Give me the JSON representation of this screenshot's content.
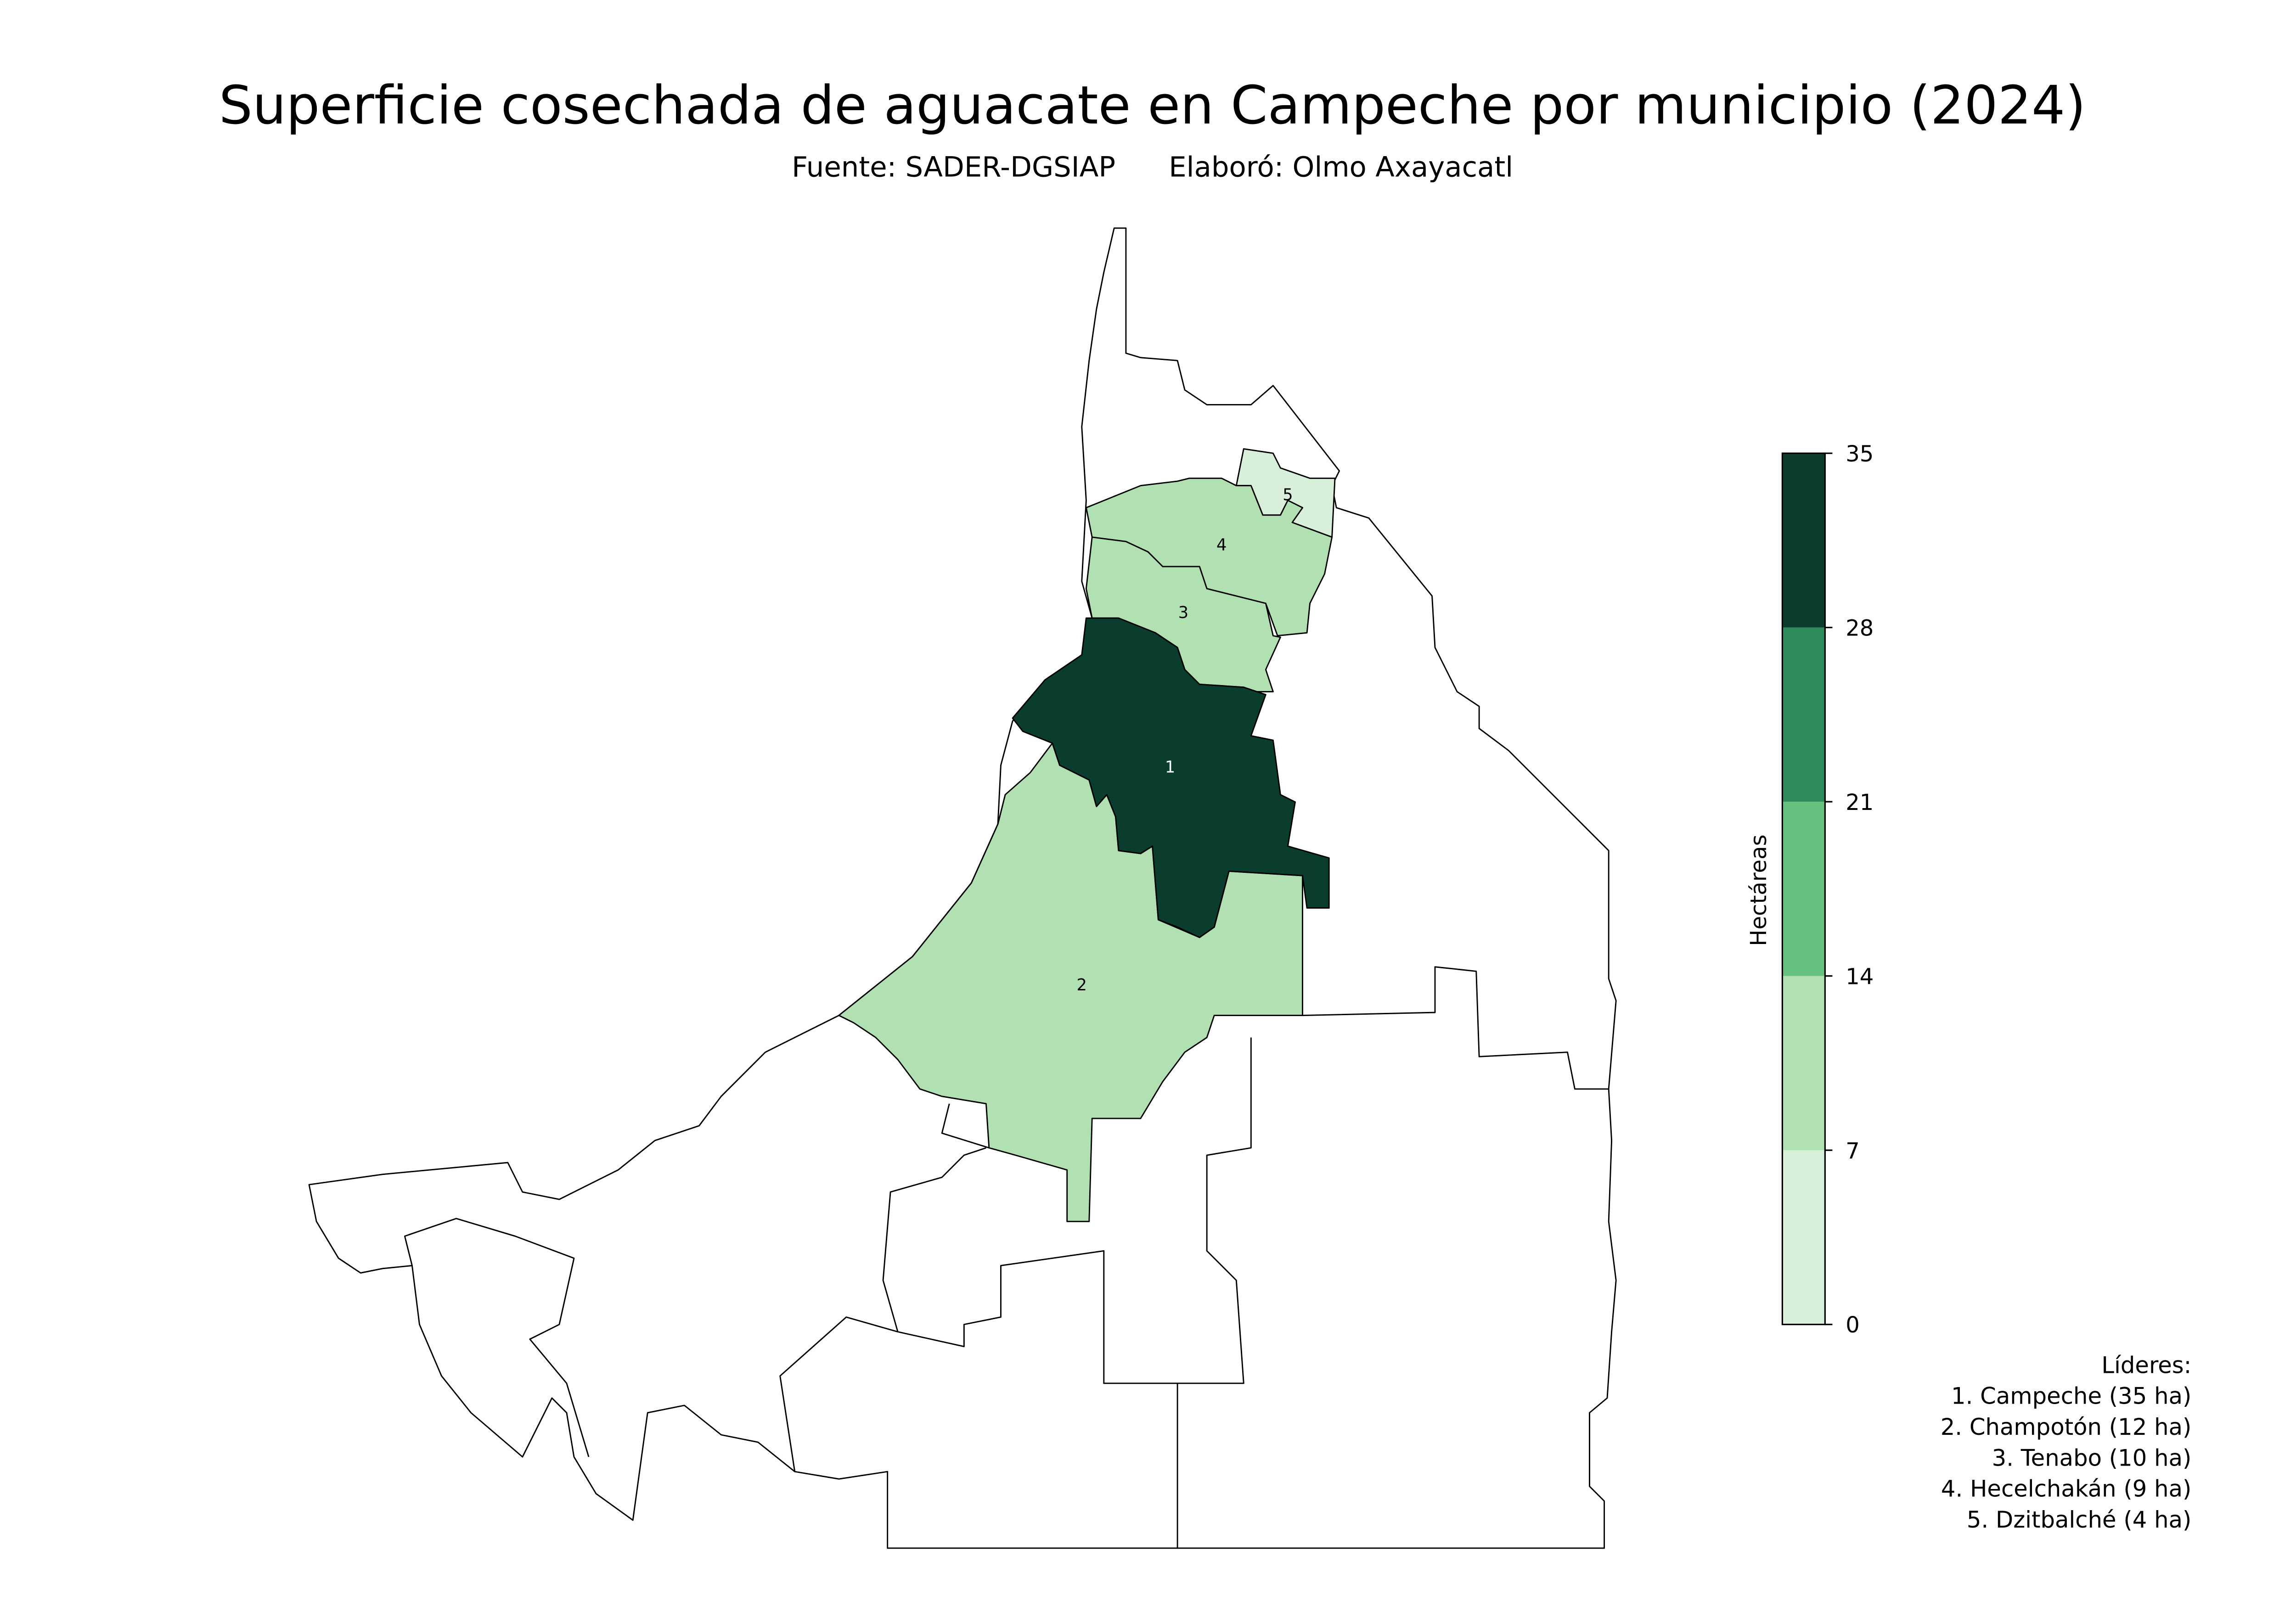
{
  "title": "Superficie cosechada de aguacate en Campeche por municipio (2024)",
  "subtitle": "Fuente: SADER-DGSIAP      Elaboró: Olmo Axayacatl",
  "chart_data": {
    "type": "choropleth",
    "title": "Superficie cosechada de aguacate en Campeche por municipio (2024)",
    "unit": "ha",
    "regions": [
      {
        "rank": "1",
        "name": "Campeche",
        "value": 35
      },
      {
        "rank": "2",
        "name": "Champotón",
        "value": 12
      },
      {
        "rank": "3",
        "name": "Tenabo",
        "value": 10
      },
      {
        "rank": "4",
        "name": "Hecelchakán",
        "value": 9
      },
      {
        "rank": "5",
        "name": "Dzitbalché",
        "value": 4
      }
    ],
    "no_data_color": "#ffffff",
    "colorbar": {
      "label": "Hectáreas",
      "ticks": [
        "0",
        "7",
        "14",
        "21",
        "28",
        "35"
      ],
      "bins": [
        0,
        7,
        14,
        21,
        28,
        35
      ],
      "colors": [
        "#d8f0da",
        "#b1e0b3",
        "#66c17f",
        "#2e8b5b",
        "#0b3d2e"
      ]
    }
  },
  "leaders": {
    "heading": "Líderes:",
    "items": [
      "1. Campeche (35 ha)",
      "2. Champotón (12 ha)",
      "3. Tenabo (10 ha)",
      "4. Hecelchakán (9 ha)",
      "5. Dzitbalché (4 ha)"
    ]
  }
}
